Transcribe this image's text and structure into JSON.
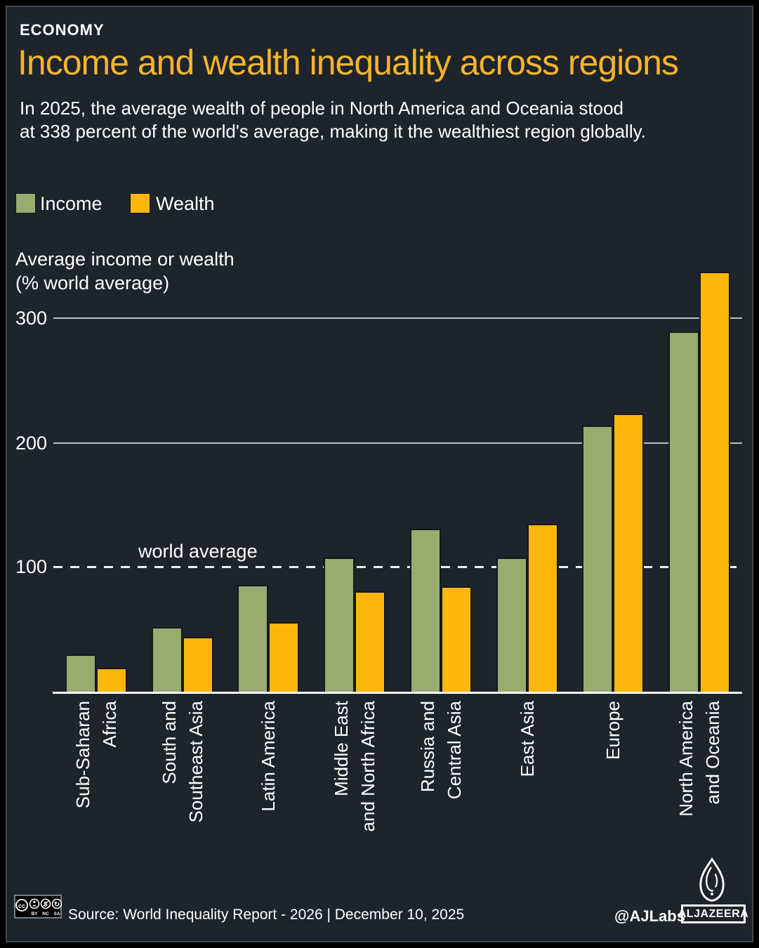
{
  "header": {
    "kicker": "ECONOMY",
    "title": "Income and wealth inequality across regions",
    "subtitle_line1": "In 2025, the average wealth of people in North America and Oceania stood",
    "subtitle_line2": "at 338 percent of the world's average, making it the wealthiest region globally."
  },
  "colors": {
    "background": "#1d242b",
    "frame": "#000000",
    "title_yellow": "#f4b42c",
    "income_green": "#9aab6f",
    "wealth_orange": "#fdb60b",
    "gridline": "#d8dcde",
    "text": "#ffffff"
  },
  "chart_data": {
    "type": "bar",
    "title": "Average income or wealth (% world average)",
    "axis_title_line1": "Average income or wealth",
    "axis_title_line2": "(% world average)",
    "yticks": [
      300,
      200,
      100
    ],
    "ylim": [
      0,
      350
    ],
    "grid": "horizontal",
    "legend_position": "top-left",
    "reference_line": {
      "label": "world average",
      "value": 100,
      "style": "dashed"
    },
    "categories": [
      "Sub-Saharan Africa",
      "South and Southeast Asia",
      "Latin America",
      "Middle East and North Africa",
      "Russia and Central Asia",
      "East Asia",
      "Europe",
      "North America and Oceania"
    ],
    "category_label_lines": [
      [
        "Sub-Saharan",
        "Africa"
      ],
      [
        "South and",
        "Southeast Asia"
      ],
      [
        "Latin America"
      ],
      [
        "Middle East",
        "and North Africa"
      ],
      [
        "Russia and",
        "Central Asia"
      ],
      [
        "East Asia"
      ],
      [
        "Europe"
      ],
      [
        "North America",
        "and Oceania"
      ]
    ],
    "series": [
      {
        "name": "Income",
        "color": "#9aab6f",
        "values": [
          30,
          52,
          86,
          108,
          131,
          108,
          214,
          290
        ]
      },
      {
        "name": "Wealth",
        "color": "#fdb60b",
        "values": [
          19,
          44,
          56,
          81,
          85,
          135,
          224,
          338
        ]
      }
    ]
  },
  "footer": {
    "license": {
      "cc_label": "cc",
      "sub_labels": [
        "BY",
        "NC",
        "SA"
      ],
      "icons": [
        "cc-icon",
        "by-person-icon",
        "nc-dollar-icon",
        "sa-arrow-icon"
      ]
    },
    "source": "Source: World Inequality Report - 2026  |  December 10, 2025",
    "credit": "@AJLabs",
    "logo_text": "ALJAZEERA"
  }
}
